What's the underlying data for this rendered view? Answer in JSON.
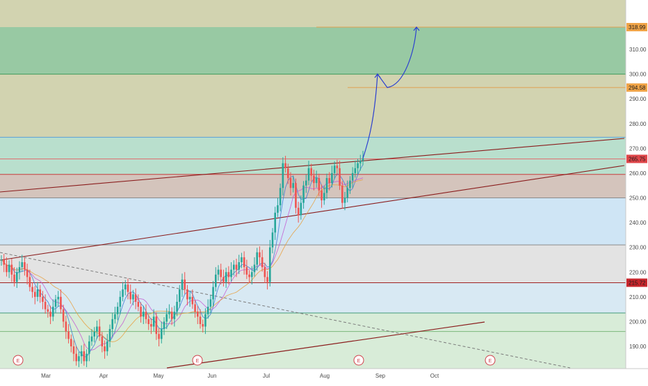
{
  "chart_data": {
    "type": "candlestick",
    "title": "",
    "ylim": [
      180,
      331
    ],
    "y_ticks": [
      "190.00",
      "200.00",
      "210.00",
      "220.00",
      "230.00",
      "240.00",
      "250.00",
      "260.00",
      "270.00",
      "280.00",
      "290.00",
      "300.00",
      "310.00"
    ],
    "x_ticks": [
      "Mar",
      "Apr",
      "May",
      "Jun",
      "Jul",
      "Aug",
      "Sep",
      "Oct"
    ],
    "zones": [
      {
        "from": 318.99,
        "to": 331,
        "color": "#d2d3b0"
      },
      {
        "from": 300,
        "to": 318.99,
        "color": "#98c9a3"
      },
      {
        "from": 274.5,
        "to": 300,
        "color": "#d2d3b0"
      },
      {
        "from": 259.5,
        "to": 274.5,
        "color": "#b9dfcd"
      },
      {
        "from": 250,
        "to": 259.5,
        "color": "#d4c4bc"
      },
      {
        "from": 231,
        "to": 250,
        "color": "#cfe5f5"
      },
      {
        "from": 215.72,
        "to": 231,
        "color": "#e3e3e3"
      },
      {
        "from": 203.5,
        "to": 215.72,
        "color": "#d8e9f3"
      },
      {
        "from": 180,
        "to": 203.5,
        "color": "#d8ecd8"
      }
    ],
    "horizontal_levels": [
      318.99,
      300,
      294.58,
      274.5,
      265.75,
      259.5,
      250,
      231,
      215.72,
      203.5,
      196
    ],
    "price_tags": [
      {
        "value": "318.99",
        "color": "#f0a448"
      },
      {
        "value": "294.58",
        "color": "#f0a448"
      },
      {
        "value": "265.75",
        "color": "#e0464a"
      },
      {
        "value": "215.72",
        "color": "#c8262c"
      }
    ],
    "earnings_markers": [
      "E",
      "E",
      "E",
      "E"
    ],
    "projection_path": [
      [
        "Aug 23",
        266
      ],
      [
        "Aug 28",
        300
      ],
      [
        "Sep 2",
        294.58
      ],
      [
        "Sep 10",
        318.99
      ]
    ],
    "series": [
      {
        "values": [
          225,
          223,
          220,
          223,
          219,
          216,
          220,
          222,
          224,
          221,
          218,
          214,
          212,
          210,
          213,
          210,
          208,
          205,
          204,
          202,
          206,
          209,
          210,
          205,
          200,
          196,
          193,
          190,
          187,
          184,
          186,
          188,
          184,
          187,
          192,
          194,
          196,
          198,
          194,
          190,
          188,
          192,
          197,
          201,
          203,
          206,
          210,
          213,
          215,
          212,
          209,
          211,
          208,
          206,
          202,
          204,
          201,
          199,
          198,
          202,
          195,
          193,
          197,
          200,
          203,
          204,
          201,
          204,
          208,
          213,
          217,
          213,
          209,
          210,
          207,
          204,
          202,
          199,
          198,
          203,
          206,
          209,
          214,
          219,
          221,
          218,
          216,
          220,
          218,
          221,
          223,
          221,
          224,
          226,
          222,
          219,
          218,
          220,
          223,
          228,
          226,
          222,
          218,
          216,
          230,
          236,
          244,
          247,
          254,
          264,
          262,
          258,
          254,
          256,
          246,
          243,
          248,
          255,
          257,
          262,
          259,
          256,
          258,
          253,
          249,
          252,
          258,
          256,
          260,
          263,
          262,
          255,
          248,
          250,
          254,
          257,
          260,
          262,
          264,
          265,
          266
        ]
      }
    ]
  }
}
